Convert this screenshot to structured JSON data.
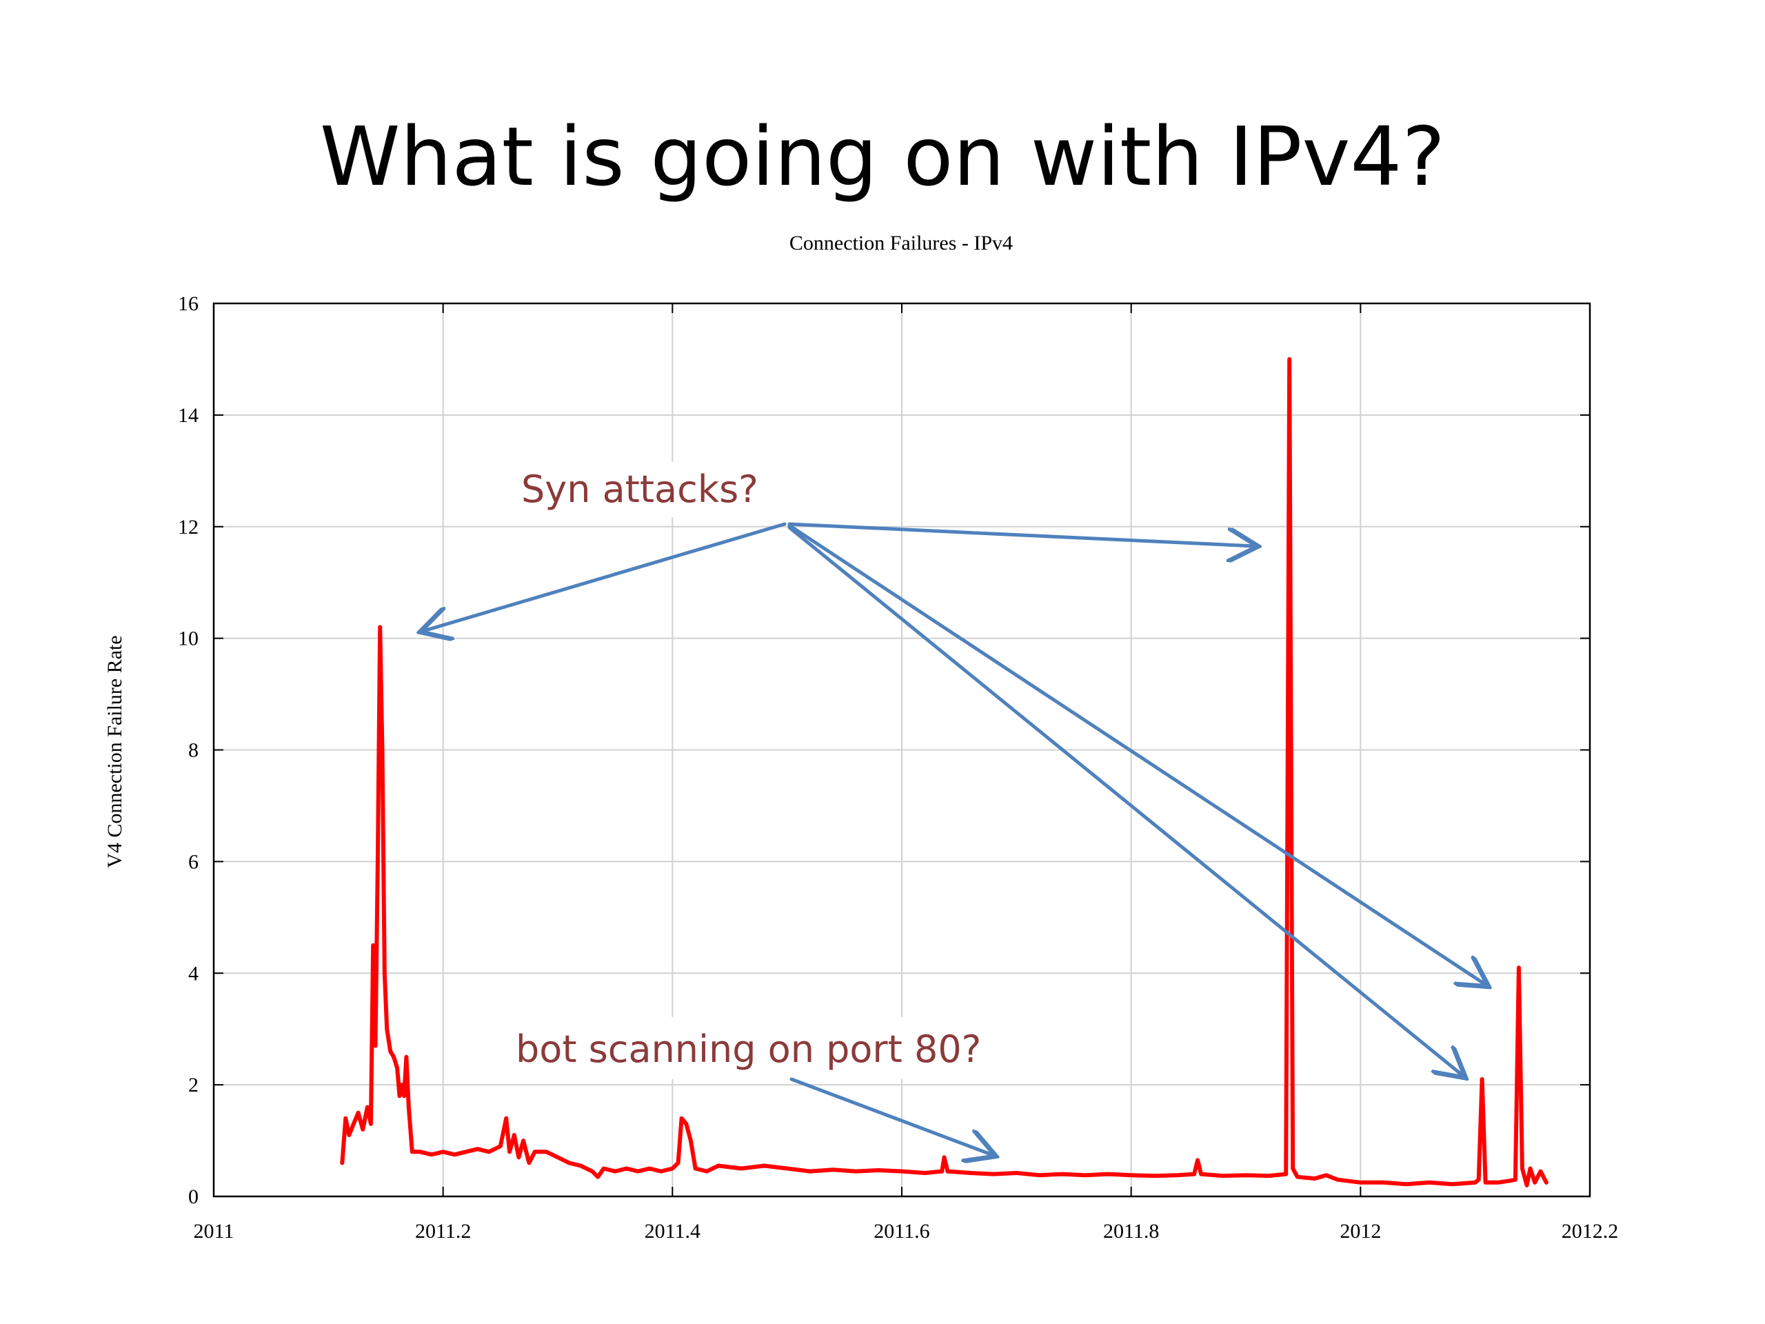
{
  "slide": {
    "title": "What is going on with IPv4?"
  },
  "annotations": {
    "syn": "Syn attacks?",
    "bot": "bot scanning on port 80?",
    "text_color": "#8B3A3A",
    "arrow_color": "#4F81BD"
  },
  "chart_data": {
    "type": "line",
    "title": "Connection Failures - IPv4",
    "xlabel": "",
    "ylabel": "V4 Connection Failure Rate",
    "xlim": [
      2011,
      2012.2
    ],
    "ylim": [
      0,
      16
    ],
    "xticks": [
      2011,
      2011.2,
      2011.4,
      2011.6,
      2011.8,
      2012,
      2012.2
    ],
    "xtick_labels": [
      "2011",
      "2011.2",
      "2011.4",
      "2011.6",
      "2011.8",
      "2012",
      "2012.2"
    ],
    "yticks": [
      0,
      2,
      4,
      6,
      8,
      10,
      12,
      14,
      16
    ],
    "ytick_labels": [
      "0",
      "2",
      "4",
      "6",
      "8",
      "10",
      "12",
      "14",
      "16"
    ],
    "grid": true,
    "series": [
      {
        "color": "#FF0000",
        "points": [
          [
            2011.112,
            0.6
          ],
          [
            2011.115,
            1.4
          ],
          [
            2011.118,
            1.1
          ],
          [
            2011.122,
            1.3
          ],
          [
            2011.126,
            1.5
          ],
          [
            2011.13,
            1.2
          ],
          [
            2011.134,
            1.6
          ],
          [
            2011.137,
            1.3
          ],
          [
            2011.139,
            4.5
          ],
          [
            2011.141,
            2.7
          ],
          [
            2011.143,
            6.0
          ],
          [
            2011.145,
            10.2
          ],
          [
            2011.147,
            8.0
          ],
          [
            2011.149,
            4.0
          ],
          [
            2011.151,
            3.0
          ],
          [
            2011.154,
            2.6
          ],
          [
            2011.157,
            2.5
          ],
          [
            2011.16,
            2.3
          ],
          [
            2011.162,
            1.8
          ],
          [
            2011.164,
            2.0
          ],
          [
            2011.166,
            1.8
          ],
          [
            2011.168,
            2.5
          ],
          [
            2011.17,
            1.6
          ],
          [
            2011.173,
            0.8
          ],
          [
            2011.18,
            0.8
          ],
          [
            2011.19,
            0.75
          ],
          [
            2011.2,
            0.8
          ],
          [
            2011.21,
            0.75
          ],
          [
            2011.22,
            0.8
          ],
          [
            2011.23,
            0.85
          ],
          [
            2011.24,
            0.8
          ],
          [
            2011.25,
            0.9
          ],
          [
            2011.255,
            1.4
          ],
          [
            2011.258,
            0.8
          ],
          [
            2011.262,
            1.1
          ],
          [
            2011.266,
            0.7
          ],
          [
            2011.27,
            1.0
          ],
          [
            2011.275,
            0.6
          ],
          [
            2011.28,
            0.8
          ],
          [
            2011.29,
            0.8
          ],
          [
            2011.3,
            0.7
          ],
          [
            2011.31,
            0.6
          ],
          [
            2011.32,
            0.55
          ],
          [
            2011.33,
            0.45
          ],
          [
            2011.335,
            0.35
          ],
          [
            2011.34,
            0.5
          ],
          [
            2011.35,
            0.45
          ],
          [
            2011.36,
            0.5
          ],
          [
            2011.37,
            0.45
          ],
          [
            2011.38,
            0.5
          ],
          [
            2011.39,
            0.45
          ],
          [
            2011.4,
            0.5
          ],
          [
            2011.405,
            0.6
          ],
          [
            2011.408,
            1.4
          ],
          [
            2011.412,
            1.3
          ],
          [
            2011.416,
            1.0
          ],
          [
            2011.42,
            0.5
          ],
          [
            2011.43,
            0.45
          ],
          [
            2011.44,
            0.55
          ],
          [
            2011.46,
            0.5
          ],
          [
            2011.48,
            0.55
          ],
          [
            2011.5,
            0.5
          ],
          [
            2011.52,
            0.45
          ],
          [
            2011.54,
            0.48
          ],
          [
            2011.56,
            0.45
          ],
          [
            2011.58,
            0.47
          ],
          [
            2011.6,
            0.45
          ],
          [
            2011.62,
            0.42
          ],
          [
            2011.635,
            0.45
          ],
          [
            2011.637,
            0.7
          ],
          [
            2011.64,
            0.45
          ],
          [
            2011.66,
            0.42
          ],
          [
            2011.68,
            0.4
          ],
          [
            2011.7,
            0.42
          ],
          [
            2011.72,
            0.38
          ],
          [
            2011.74,
            0.4
          ],
          [
            2011.76,
            0.38
          ],
          [
            2011.78,
            0.4
          ],
          [
            2011.8,
            0.38
          ],
          [
            2011.82,
            0.37
          ],
          [
            2011.84,
            0.38
          ],
          [
            2011.855,
            0.4
          ],
          [
            2011.858,
            0.65
          ],
          [
            2011.861,
            0.4
          ],
          [
            2011.88,
            0.37
          ],
          [
            2011.9,
            0.38
          ],
          [
            2011.92,
            0.37
          ],
          [
            2011.935,
            0.4
          ],
          [
            2011.938,
            15.0
          ],
          [
            2011.941,
            0.5
          ],
          [
            2011.945,
            0.35
          ],
          [
            2011.96,
            0.32
          ],
          [
            2011.97,
            0.38
          ],
          [
            2011.98,
            0.3
          ],
          [
            2012.0,
            0.25
          ],
          [
            2012.02,
            0.25
          ],
          [
            2012.04,
            0.22
          ],
          [
            2012.06,
            0.25
          ],
          [
            2012.08,
            0.22
          ],
          [
            2012.1,
            0.25
          ],
          [
            2012.103,
            0.3
          ],
          [
            2012.106,
            2.1
          ],
          [
            2012.109,
            0.25
          ],
          [
            2012.12,
            0.25
          ],
          [
            2012.13,
            0.28
          ],
          [
            2012.135,
            0.3
          ],
          [
            2012.138,
            4.1
          ],
          [
            2012.141,
            0.5
          ],
          [
            2012.145,
            0.2
          ],
          [
            2012.148,
            0.5
          ],
          [
            2012.152,
            0.25
          ],
          [
            2012.157,
            0.45
          ],
          [
            2012.162,
            0.25
          ]
        ]
      }
    ]
  }
}
